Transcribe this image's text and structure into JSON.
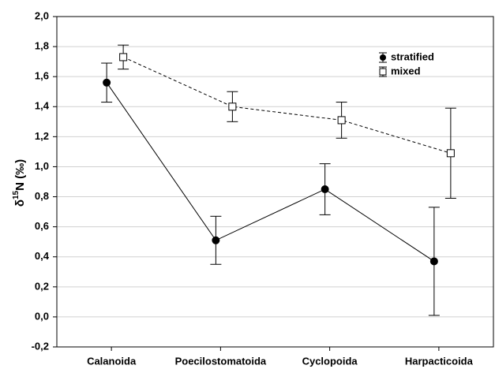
{
  "chart_data": {
    "type": "line",
    "ylabel": {
      "prefix": "δ",
      "superscript": "15",
      "suffix": "N (‰)"
    },
    "categories": [
      "Calanoida",
      "Poecilostomatoida",
      "Cyclopoida",
      "Harpacticoida"
    ],
    "series": [
      {
        "name": "stratified",
        "color": "#000000",
        "marker": "circle",
        "linestyle": "solid",
        "values": [
          1.56,
          0.51,
          0.85,
          0.37
        ],
        "errors": [
          0.13,
          0.16,
          0.17,
          0.36
        ]
      },
      {
        "name": "mixed",
        "color": "#000000",
        "marker": "square",
        "linestyle": "dashed",
        "values": [
          1.73,
          1.4,
          1.31,
          1.09
        ],
        "errors": [
          0.08,
          0.1,
          0.12,
          0.3
        ]
      }
    ],
    "ylim": [
      -0.2,
      2.0
    ],
    "yticks": [
      {
        "value": -0.2,
        "label": "-0,2"
      },
      {
        "value": 0,
        "label": "0,0"
      },
      {
        "value": 0.2,
        "label": "0,2"
      },
      {
        "value": 0.4,
        "label": "0,4"
      },
      {
        "value": 0.6,
        "label": "0,6"
      },
      {
        "value": 0.8,
        "label": "0,8"
      },
      {
        "value": 1.0,
        "label": "1,0"
      },
      {
        "value": 1.2,
        "label": "1,2"
      },
      {
        "value": 1.4,
        "label": "1,4"
      },
      {
        "value": 1.6,
        "label": "1,6"
      },
      {
        "value": 1.8,
        "label": "1,8"
      },
      {
        "value": 2.0,
        "label": "2,0"
      }
    ],
    "grid": true,
    "legend": "upper right"
  }
}
